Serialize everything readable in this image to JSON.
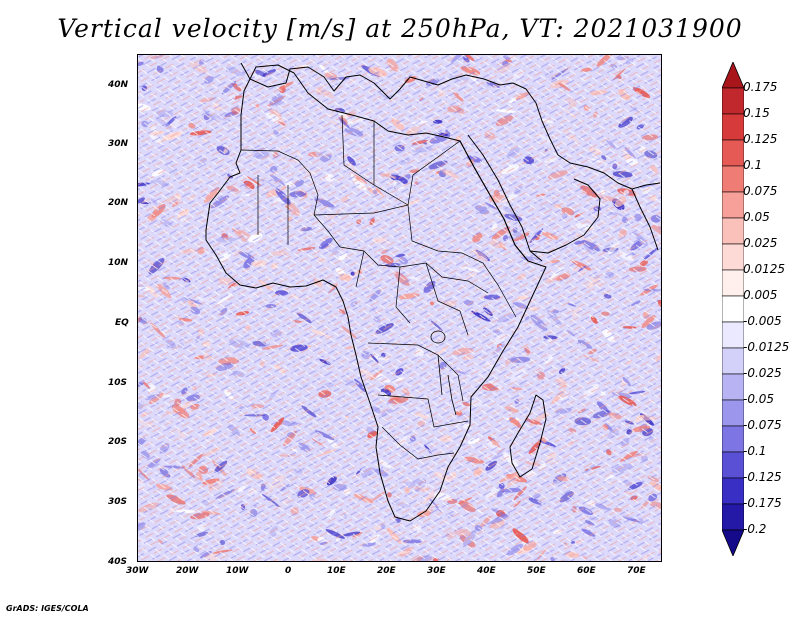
{
  "title": "Vertical velocity [m/s] at 250hPa, VT: 2021031900",
  "footer": "GrADS: IGES/COLA",
  "map": {
    "lat_labels": [
      "40N",
      "30N",
      "20N",
      "10N",
      "EQ",
      "10S",
      "20S",
      "30S",
      "40S"
    ],
    "lon_labels": [
      "30W",
      "20W",
      "10W",
      "0",
      "10E",
      "20E",
      "30E",
      "40E",
      "50E",
      "60E",
      "70E"
    ],
    "lat_range": [
      -40,
      45
    ],
    "lon_range": [
      -30,
      75
    ]
  },
  "colorbar": {
    "labels": [
      "0.175",
      "0.15",
      "0.125",
      "0.1",
      "0.075",
      "0.05",
      "0.025",
      "0.0125",
      "0.005",
      "-0.005",
      "-0.0125",
      "-0.025",
      "-0.05",
      "-0.075",
      "-0.1",
      "-0.125",
      "-0.175",
      "-0.2"
    ],
    "colors": [
      "#a8161b",
      "#c0282d",
      "#d63a3a",
      "#e65a55",
      "#f07d75",
      "#f6a099",
      "#fac0ba",
      "#fddad6",
      "#fff0ee",
      "#ffffff",
      "#ebe9ff",
      "#d3d0fa",
      "#b8b4f3",
      "#9c96ec",
      "#7d75e4",
      "#5a50d6",
      "#3a2fc4",
      "#2418a6",
      "#140a8a"
    ]
  }
}
